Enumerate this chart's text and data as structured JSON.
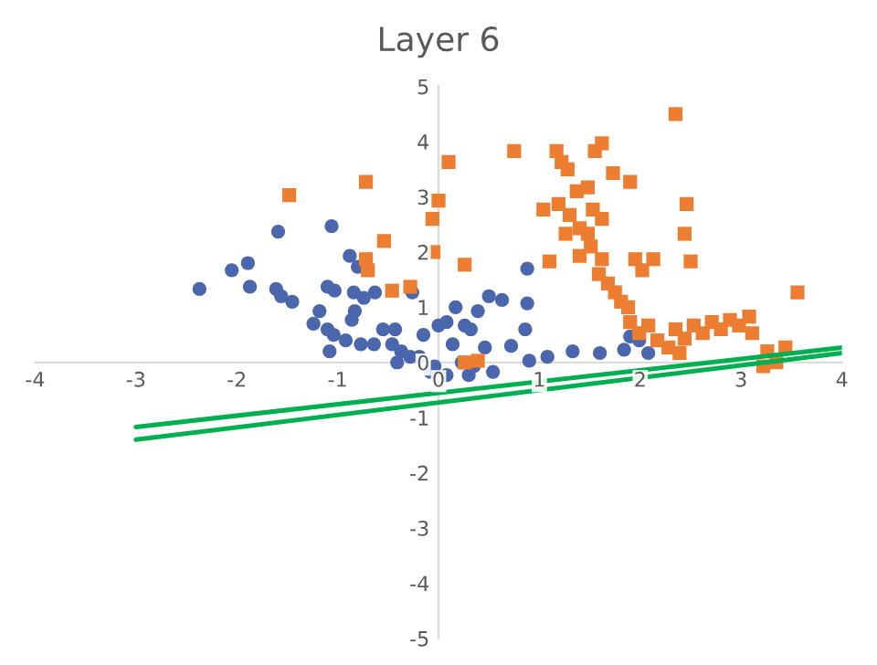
{
  "chart_data": {
    "type": "scatter",
    "title": "Layer 6",
    "xlim": [
      -4,
      4
    ],
    "ylim": [
      -5,
      5
    ],
    "xticks": [
      -4,
      -3,
      -2,
      -1,
      0,
      1,
      2,
      3,
      4
    ],
    "yticks": [
      -5,
      -4,
      -3,
      -2,
      -1,
      0,
      1,
      2,
      3,
      4,
      5
    ],
    "grid": false,
    "legend": false,
    "series": [
      {
        "type": "scatter",
        "marker": "circle",
        "color": "#4a66ad",
        "x": [
          -2.37,
          -2.05,
          -1.89,
          -1.59,
          -1.87,
          -1.61,
          -1.56,
          -1.45,
          -1.06,
          -1.1,
          -1.03,
          -1.18,
          -1.24,
          -1.1,
          -0.88,
          -0.8,
          -0.84,
          -0.83,
          -0.86,
          -0.63,
          -0.74,
          -1.08,
          -1.04,
          -0.92,
          -0.77,
          -0.64,
          -0.55,
          -0.43,
          -0.46,
          -0.37,
          -0.28,
          -0.19,
          -0.04,
          -0.26,
          -0.15,
          0.0,
          0.08,
          0.17,
          0.26,
          0.14,
          0.23,
          0.32,
          0.39,
          0.46,
          0.5,
          0.63,
          0.72,
          0.86,
          0.88,
          0.9,
          1.08,
          0.88,
          1.33,
          1.6,
          1.84,
          1.9,
          1.99,
          2.08,
          0.35,
          0.54,
          0.3,
          0.08,
          -0.08,
          -0.41
        ],
        "values": [
          1.33,
          1.67,
          1.8,
          2.37,
          1.37,
          1.33,
          1.2,
          1.1,
          2.47,
          1.37,
          1.3,
          0.93,
          0.7,
          0.6,
          1.93,
          1.73,
          1.27,
          0.93,
          0.77,
          1.27,
          1.17,
          0.2,
          0.5,
          0.4,
          0.33,
          0.33,
          0.6,
          0.6,
          0.33,
          0.2,
          0.1,
          0.1,
          -0.07,
          1.27,
          0.5,
          0.67,
          0.73,
          1.0,
          0.67,
          0.33,
          0.0,
          0.6,
          0.93,
          0.27,
          1.2,
          1.13,
          0.3,
          0.6,
          1.07,
          0.03,
          0.1,
          1.7,
          0.2,
          0.17,
          0.23,
          0.47,
          0.4,
          0.17,
          -0.07,
          -0.17,
          -0.23,
          -0.23,
          -0.17,
          0.0
        ]
      },
      {
        "type": "scatter",
        "marker": "square",
        "color": "#ed7d31",
        "x": [
          -1.48,
          -0.72,
          -0.54,
          -0.72,
          -0.7,
          -0.46,
          -0.28,
          0.0,
          -0.06,
          -0.05,
          0.1,
          0.26,
          0.26,
          0.39,
          0.75,
          1.04,
          1.1,
          1.17,
          1.22,
          1.28,
          1.37,
          1.48,
          1.55,
          1.62,
          1.73,
          1.9,
          1.19,
          1.3,
          1.4,
          1.48,
          1.26,
          1.51,
          1.62,
          1.59,
          1.68,
          1.75,
          1.81,
          1.88,
          1.95,
          2.02,
          2.13,
          2.35,
          2.46,
          2.5,
          2.44,
          1.9,
          1.99,
          2.08,
          2.17,
          2.28,
          2.35,
          2.44,
          2.53,
          2.62,
          2.71,
          2.8,
          2.89,
          2.98,
          3.08,
          3.11,
          3.26,
          3.35,
          3.44,
          3.56,
          3.22,
          2.39,
          1.53,
          1.62,
          1.4
        ],
        "values": [
          3.03,
          3.27,
          2.2,
          1.87,
          1.67,
          1.3,
          1.37,
          2.93,
          2.6,
          2.0,
          3.63,
          1.77,
          0.0,
          0.03,
          3.83,
          2.77,
          1.83,
          3.83,
          3.63,
          3.5,
          3.1,
          3.17,
          3.83,
          3.97,
          3.43,
          3.27,
          2.87,
          2.67,
          2.43,
          2.33,
          2.33,
          2.1,
          1.87,
          1.6,
          1.43,
          1.27,
          1.1,
          1.0,
          1.87,
          1.67,
          1.87,
          4.5,
          2.87,
          1.83,
          2.33,
          0.73,
          0.53,
          0.67,
          0.4,
          0.27,
          0.6,
          0.43,
          0.67,
          0.53,
          0.73,
          0.6,
          0.77,
          0.67,
          0.83,
          0.53,
          0.2,
          0.0,
          0.27,
          1.27,
          -0.07,
          0.17,
          2.77,
          2.6,
          1.93
        ]
      },
      {
        "type": "line",
        "color": "#00b050",
        "x": [
          -3,
          4
        ],
        "values": [
          -1.17,
          0.27
        ]
      },
      {
        "type": "line",
        "color": "#00b050",
        "x": [
          -3,
          4
        ],
        "values": [
          -1.4,
          0.17
        ]
      }
    ]
  }
}
